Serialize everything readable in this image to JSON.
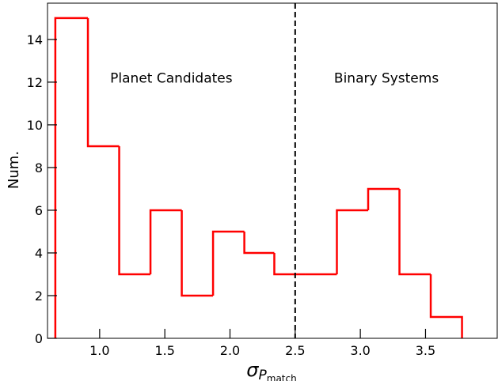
{
  "chart_data": {
    "type": "histogram",
    "xlabel": {
      "base": "σ",
      "sub": "P",
      "subsub": "match"
    },
    "ylabel": "Num.",
    "xlim": [
      0.6,
      4.05
    ],
    "ylim": [
      0,
      15.7
    ],
    "xticks": [
      1.0,
      1.5,
      2.0,
      2.5,
      3.0,
      3.5
    ],
    "xtick_labels": [
      "1.0",
      "1.5",
      "2.0",
      "2.5",
      "3.0",
      "3.5"
    ],
    "yticks": [
      0,
      2,
      4,
      6,
      8,
      10,
      12,
      14
    ],
    "ytick_labels": [
      "0",
      "2",
      "4",
      "6",
      "8",
      "10",
      "12",
      "14"
    ],
    "bins": [
      {
        "x0": 0.66,
        "x1": 0.91,
        "count": 15
      },
      {
        "x0": 0.91,
        "x1": 1.15,
        "count": 9
      },
      {
        "x0": 1.15,
        "x1": 1.39,
        "count": 3
      },
      {
        "x0": 1.39,
        "x1": 1.63,
        "count": 6
      },
      {
        "x0": 1.63,
        "x1": 1.87,
        "count": 2
      },
      {
        "x0": 1.87,
        "x1": 2.11,
        "count": 5
      },
      {
        "x0": 2.11,
        "x1": 2.34,
        "count": 4
      },
      {
        "x0": 2.34,
        "x1": 2.58,
        "count": 3
      },
      {
        "x0": 2.58,
        "x1": 2.82,
        "count": 3
      },
      {
        "x0": 2.82,
        "x1": 3.06,
        "count": 6
      },
      {
        "x0": 3.06,
        "x1": 3.3,
        "count": 7
      },
      {
        "x0": 3.3,
        "x1": 3.54,
        "count": 3
      },
      {
        "x0": 3.54,
        "x1": 3.78,
        "count": 1
      }
    ],
    "threshold": 2.5,
    "annotations": [
      {
        "text": "Planet Candidates",
        "x": 1.55,
        "y": 12.2
      },
      {
        "text": "Binary Systems",
        "x": 3.2,
        "y": 12.2
      }
    ],
    "colors": {
      "histogram": "#ff0000",
      "threshold": "#000000"
    },
    "grid": false
  }
}
